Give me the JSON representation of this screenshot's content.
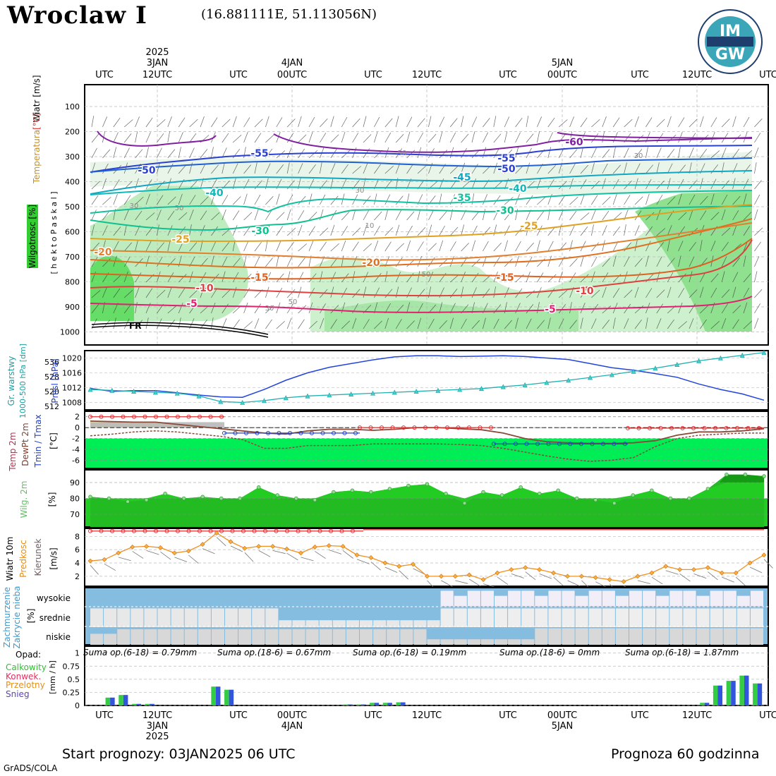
{
  "header": {
    "station": "Wroclaw I",
    "coords": "(16.881111E, 51.113056N)",
    "logo_text_top": "IM",
    "logo_text_bottom": "GW"
  },
  "time_axis": {
    "top_ticks": [
      "UTC",
      "12UTC",
      "UTC",
      "00UTC",
      "UTC",
      "12UTC",
      "UTC",
      "00UTC",
      "UTC",
      "12UTC",
      "UTC"
    ],
    "bottom_ticks": [
      "UTC",
      "12UTC",
      "UTC",
      "00UTC",
      "UTC",
      "12UTC",
      "UTC",
      "00UTC",
      "UTC",
      "12UTC",
      "UTC"
    ],
    "day_labels": [
      {
        "year": "2025",
        "day": "3JAN"
      },
      {
        "year": "",
        "day": "4JAN"
      },
      {
        "year": "",
        "day": "5JAN"
      }
    ]
  },
  "panel_labels": {
    "p1_left": [
      "Wiatr [m/s]",
      "[°C]",
      "Temperatura",
      "Wilgotnosc [%]",
      "[ h e k t o P a s k a l ]"
    ],
    "p2_left": [
      "Gr. warstwy",
      "1000-500 hPa [dm]",
      "Pmsl [hPa]"
    ],
    "p3_left": [
      "Temp 2m",
      "DewPt 2m",
      "Tmin / Tmax",
      "[°C]"
    ],
    "p4_left": [
      "Wilg. 2m",
      "[%]"
    ],
    "p5_left": [
      "Wiatr 10m",
      "Predkosc",
      "Kierunek",
      "[m/s]"
    ],
    "p6_left": [
      "Zachmurzenie",
      "Zakrycie nieba",
      "[%]",
      "wysokie",
      "srednie",
      "niskie"
    ],
    "p7_left": [
      "Opad:",
      "Calkowity",
      "Konwek.",
      "Przelotny",
      "Snieg",
      "[mm / h]"
    ]
  },
  "chart_data": [
    {
      "type": "contour",
      "panel": "upper-air cross-section",
      "y_ticks": [
        "100",
        "200",
        "300",
        "400",
        "500",
        "600",
        "700",
        "800",
        "900",
        "1000"
      ],
      "front_label": "FR",
      "isotherm_labels": [
        "-55",
        "-50",
        "-60",
        "-55",
        "-50",
        "-45",
        "-40",
        "-40",
        "-35",
        "-30",
        "-30",
        "-25",
        "-25",
        "-20",
        "-20",
        "-15",
        "-15",
        "-10",
        "-10",
        "-5",
        "-5"
      ],
      "humidity_labels": [
        "50",
        "30",
        "10",
        "50",
        "30",
        "50",
        "30",
        "50",
        "30"
      ]
    },
    {
      "type": "line",
      "panel": "pressure",
      "y_ticks_left": [
        "536",
        "528",
        "520",
        "512"
      ],
      "y_ticks_right": [
        "1020",
        "1016",
        "1012",
        "1008"
      ],
      "series": [
        {
          "name": "Pmsl [hPa]",
          "unit": "hPa",
          "values": [
            1011.8,
            1011.0,
            1011.2,
            1011.2,
            1010.6,
            1010.0,
            1009.5,
            1009.4,
            1011.5,
            1014.0,
            1016.0,
            1017.5,
            1018.5,
            1019.5,
            1020.3,
            1020.6,
            1020.6,
            1020.4,
            1020.5,
            1020.6,
            1020.4,
            1020.0,
            1019.6,
            1018.5,
            1017.4,
            1016.7,
            1015.8,
            1014.8,
            1013.0,
            1011.5,
            1010.3,
            1008.6
          ]
        },
        {
          "name": "Gr. warstwy 1000-500 hPa [dm]",
          "unit": "dm",
          "values": [
            521.0,
            520.5,
            520.0,
            519.5,
            519.0,
            517.5,
            514.5,
            514.0,
            515.0,
            516.5,
            517.5,
            518.0,
            518.5,
            519.0,
            519.5,
            520.0,
            520.5,
            521.0,
            521.5,
            522.5,
            523.5,
            524.8,
            526.0,
            527.5,
            529.0,
            530.8,
            532.5,
            534.5,
            536.5,
            538.0,
            539.5,
            541.0
          ]
        }
      ]
    },
    {
      "type": "line",
      "panel": "temperature 2m",
      "y_ticks": [
        "2",
        "0",
        "-2",
        "-4",
        "-6"
      ],
      "series": [
        {
          "name": "Temp 2m",
          "values": [
            1.2,
            1.1,
            1.0,
            1.0,
            0.6,
            0.2,
            -0.2,
            -0.6,
            -1.0,
            -1.2,
            -0.6,
            -0.3,
            -0.3,
            -0.5,
            -0.3,
            0.0,
            0.0,
            -0.2,
            -0.4,
            -1.0,
            -2.0,
            -2.6,
            -2.8,
            -2.9,
            -2.9,
            -2.8,
            -2.4,
            -1.4,
            -0.8,
            -0.8,
            -0.6,
            -0.2
          ]
        },
        {
          "name": "DewPt 2m",
          "values": [
            -1.5,
            -1.2,
            -0.8,
            -0.6,
            -0.8,
            -1.2,
            -1.6,
            -2.2,
            -3.8,
            -3.8,
            -3.3,
            -3.3,
            -3.3,
            -3.0,
            -3.0,
            -3.0,
            -3.0,
            -3.1,
            -3.3,
            -3.8,
            -4.5,
            -5.2,
            -5.8,
            -6.2,
            -6.0,
            -5.5,
            -3.5,
            -2.0,
            -1.4,
            -1.2,
            -1.0,
            -1.0
          ]
        },
        {
          "name": "Tmax",
          "values": [
            2,
            2,
            2,
            2,
            2,
            2,
            2
          ]
        },
        {
          "name": "Tmin",
          "values": [
            -1,
            -1,
            -1,
            -1,
            -1,
            -1,
            -1,
            -1,
            -1,
            -1,
            -1,
            -1,
            -1,
            -1
          ]
        }
      ]
    },
    {
      "type": "area",
      "panel": "humidity 2m",
      "y_ticks": [
        "90",
        "80",
        "70"
      ],
      "series": [
        {
          "name": "Wilg. 2m",
          "values": [
            81,
            80,
            78,
            79,
            83,
            80,
            81,
            80,
            80,
            87,
            82,
            80,
            79,
            84,
            85,
            84,
            86,
            88,
            89,
            83,
            77,
            84,
            82,
            87,
            83,
            85,
            80,
            79,
            77,
            82,
            85,
            80,
            80,
            86,
            95,
            95,
            94
          ]
        }
      ]
    },
    {
      "type": "line",
      "panel": "wind 10m",
      "y_ticks": [
        "8",
        "6",
        "4",
        "2"
      ],
      "series": [
        {
          "name": "Predkosc",
          "values": [
            4.3,
            4.5,
            5.5,
            6.4,
            6.5,
            6.3,
            5.5,
            5.8,
            6.8,
            8.5,
            7.2,
            6.2,
            6.5,
            6.5,
            6.1,
            5.5,
            6.4,
            6.6,
            6.5,
            5.2,
            4.8,
            4.0,
            3.5,
            3.8,
            2.0,
            2.0,
            2.0,
            2.2,
            1.5,
            2.5,
            3.0,
            3.3,
            3.0,
            2.5,
            2.0,
            2.0,
            1.8,
            1.5,
            1.2,
            2.0,
            2.5,
            3.5,
            3.0,
            3.0,
            3.3,
            2.5,
            2.5,
            4.0,
            5.2
          ]
        }
      ]
    },
    {
      "type": "bar",
      "panel": "cloud cover",
      "levels": [
        "wysokie",
        "srednie",
        "niskie"
      ]
    },
    {
      "type": "bar",
      "panel": "precipitation",
      "y_ticks": [
        "1",
        "0.75",
        "0.5",
        "0.25",
        "0"
      ],
      "sums": [
        "Suma op.(6-18) = 0.79mm",
        "Suma op.(18-6) = 0.67mm",
        "Suma op.(6-18) = 0.19mm",
        "Suma op.(18-6) = 0mm",
        "Suma op.(6-18) = 1.87mm"
      ],
      "series": [
        {
          "name": "Calkowity",
          "values": [
            0,
            0.15,
            0.2,
            0.03,
            0.03,
            0,
            0,
            0,
            0,
            0.36,
            0.3,
            0,
            0,
            0,
            0,
            0,
            0,
            0,
            0,
            0.02,
            0.02,
            0.05,
            0.05,
            0.06,
            0,
            0,
            0,
            0,
            0,
            0,
            0,
            0,
            0,
            0,
            0,
            0,
            0,
            0,
            0,
            0,
            0,
            0,
            0,
            0,
            0,
            0,
            0.05,
            0.38,
            0.47,
            0.57,
            0.42
          ]
        }
      ]
    }
  ],
  "footer": {
    "start": "Start prognozy: 03JAN2025 06 UTC",
    "range": "Prognoza 60 godzinna",
    "credit": "GrADS/COLA"
  }
}
